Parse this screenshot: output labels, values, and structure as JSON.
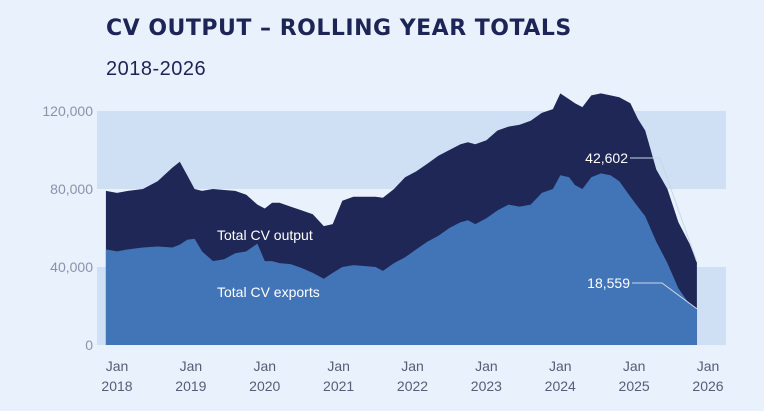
{
  "title": "CV OUTPUT – ROLLING YEAR TOTALS",
  "subtitle": "2018-2026",
  "chart_data": {
    "type": "area",
    "title": "CV OUTPUT – ROLLING YEAR TOTALS",
    "subtitle": "2018-2026",
    "xlabel": "",
    "ylabel": "",
    "ylim": [
      0,
      120000
    ],
    "yticks": [
      0,
      40000,
      80000,
      120000
    ],
    "ytick_labels": [
      "0",
      "40,000",
      "80,000",
      "120,000"
    ],
    "xlim": [
      2018,
      2026
    ],
    "xticks": [
      {
        "x": 2018,
        "line1": "Jan",
        "line2": "2018"
      },
      {
        "x": 2019,
        "line1": "Jan",
        "line2": "2019"
      },
      {
        "x": 2020,
        "line1": "Jan",
        "line2": "2020"
      },
      {
        "x": 2021,
        "line1": "Jan",
        "line2": "2021"
      },
      {
        "x": 2022,
        "line1": "Jan",
        "line2": "2022"
      },
      {
        "x": 2023,
        "line1": "Jan",
        "line2": "2023"
      },
      {
        "x": 2024,
        "line1": "Jan",
        "line2": "2024"
      },
      {
        "x": 2025,
        "line1": "Jan",
        "line2": "2025"
      },
      {
        "x": 2026,
        "line1": "Jan",
        "line2": "2026"
      }
    ],
    "grid_bands": [
      [
        0,
        40000
      ],
      [
        80000,
        120000
      ]
    ],
    "series": [
      {
        "name": "Total CV output",
        "color": "#1f2756",
        "x": [
          2017.85,
          2018.0,
          2018.15,
          2018.35,
          2018.55,
          2018.75,
          2018.85,
          2018.95,
          2019.05,
          2019.15,
          2019.3,
          2019.45,
          2019.6,
          2019.75,
          2019.9,
          2020.0,
          2020.1,
          2020.2,
          2020.35,
          2020.5,
          2020.65,
          2020.8,
          2020.92,
          2021.05,
          2021.2,
          2021.35,
          2021.5,
          2021.6,
          2021.75,
          2021.9,
          2022.05,
          2022.2,
          2022.35,
          2022.5,
          2022.65,
          2022.75,
          2022.85,
          2023.0,
          2023.15,
          2023.3,
          2023.45,
          2023.6,
          2023.75,
          2023.9,
          2024.0,
          2024.12,
          2024.2,
          2024.3,
          2024.42,
          2024.55,
          2024.68,
          2024.8,
          2024.95,
          2025.05,
          2025.15,
          2025.3,
          2025.45,
          2025.6,
          2025.75,
          2025.85
        ],
        "values": [
          79000,
          78000,
          79000,
          80000,
          84000,
          91000,
          94000,
          87000,
          80000,
          79000,
          80000,
          79500,
          79000,
          77000,
          72000,
          70000,
          73000,
          73000,
          71000,
          69000,
          67000,
          61000,
          62000,
          74000,
          76000,
          76000,
          76000,
          75500,
          80000,
          86000,
          89000,
          93000,
          97000,
          100000,
          103000,
          104000,
          103000,
          105000,
          110000,
          112000,
          113000,
          115000,
          119000,
          121000,
          129000,
          126000,
          124000,
          122000,
          128000,
          129000,
          128000,
          127000,
          124000,
          116000,
          110000,
          90000,
          80000,
          63000,
          52000,
          42602
        ]
      },
      {
        "name": "Total CV exports",
        "color": "#4274b8",
        "x": [
          2017.85,
          2018.0,
          2018.15,
          2018.35,
          2018.55,
          2018.75,
          2018.85,
          2018.95,
          2019.05,
          2019.15,
          2019.3,
          2019.45,
          2019.6,
          2019.75,
          2019.9,
          2020.0,
          2020.1,
          2020.2,
          2020.35,
          2020.5,
          2020.65,
          2020.8,
          2020.92,
          2021.05,
          2021.2,
          2021.35,
          2021.5,
          2021.6,
          2021.75,
          2021.9,
          2022.05,
          2022.2,
          2022.35,
          2022.5,
          2022.65,
          2022.75,
          2022.85,
          2023.0,
          2023.15,
          2023.3,
          2023.45,
          2023.6,
          2023.75,
          2023.9,
          2024.0,
          2024.12,
          2024.2,
          2024.3,
          2024.42,
          2024.55,
          2024.68,
          2024.8,
          2024.95,
          2025.05,
          2025.15,
          2025.3,
          2025.45,
          2025.6,
          2025.75,
          2025.85
        ],
        "values": [
          49000,
          48000,
          49000,
          50000,
          50500,
          50000,
          51500,
          54000,
          54500,
          48000,
          43000,
          44000,
          47000,
          48000,
          52000,
          43000,
          43000,
          42000,
          41500,
          39500,
          37000,
          34000,
          37000,
          40000,
          41000,
          40500,
          40000,
          38000,
          42000,
          45000,
          49000,
          53000,
          56000,
          60000,
          63000,
          64000,
          62000,
          65000,
          69000,
          72000,
          71000,
          72000,
          78000,
          80000,
          87000,
          86000,
          82000,
          80000,
          86000,
          88000,
          87000,
          84000,
          76000,
          71000,
          66000,
          53000,
          42000,
          29000,
          21000,
          18559
        ]
      }
    ],
    "annotations": [
      {
        "series": "Total CV output",
        "text": "42,602",
        "value": 42602
      },
      {
        "series": "Total CV exports",
        "text": "18,559",
        "value": 18559
      }
    ],
    "series_labels": [
      {
        "text": "Total CV output"
      },
      {
        "text": "Total CV exports"
      }
    ]
  }
}
